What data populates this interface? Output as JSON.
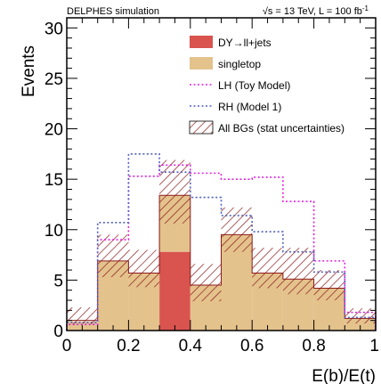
{
  "chart_data": {
    "type": "bar",
    "top_left_label": "DELPHES simulation",
    "top_right_label": "√s = 13 TeV, L = 100 fb",
    "top_right_sup": "-1",
    "xlabel": "E(b)/E(t)",
    "ylabel": "Events",
    "xlim": [
      0,
      1
    ],
    "ylim": [
      0,
      31
    ],
    "xticks": [
      0,
      0.2,
      0.4,
      0.6,
      0.8,
      1
    ],
    "xtick_labels": [
      "0",
      "0.2",
      "0.4",
      "0.6",
      "0.8",
      "1"
    ],
    "yticks": [
      0,
      5,
      10,
      15,
      20,
      25,
      30
    ],
    "ytick_labels": [
      "0",
      "5",
      "10",
      "15",
      "20",
      "25",
      "30"
    ],
    "bin_edges": [
      0,
      0.1,
      0.2,
      0.3,
      0.4,
      0.5,
      0.6,
      0.7,
      0.8,
      0.9,
      1.0
    ],
    "series": [
      {
        "name": "DY→ll+jets",
        "kind": "stacked",
        "color": "#d9534f",
        "values": [
          0,
          0,
          0,
          7.8,
          0,
          0,
          0,
          0,
          0,
          0
        ]
      },
      {
        "name": "singletop",
        "kind": "stacked",
        "color": "#e4c28c",
        "values": [
          0.9,
          6.9,
          5.7,
          5.6,
          4.5,
          9.5,
          5.7,
          5.1,
          4.2,
          1.2
        ]
      },
      {
        "name": "LH (Toy Model)",
        "kind": "step",
        "color": "#e020e0",
        "values": [
          0.6,
          9.0,
          15.3,
          16.4,
          15.6,
          15.0,
          15.2,
          12.8,
          6.9,
          1.8
        ]
      },
      {
        "name": "RH (Model 1)",
        "kind": "step",
        "color": "#5060c0",
        "values": [
          0.8,
          10.7,
          17.5,
          15.7,
          13.2,
          11.4,
          9.8,
          7.8,
          5.8,
          1.3
        ]
      },
      {
        "name": "All BGs (stat uncertainties)",
        "kind": "band",
        "color": "#8b1a1a",
        "central": [
          1.0,
          6.9,
          5.7,
          13.4,
          4.5,
          9.5,
          5.7,
          5.1,
          4.2,
          1.2
        ],
        "lower": [
          0.6,
          5.3,
          4.3,
          10.6,
          2.9,
          7.8,
          4.2,
          3.6,
          3.0,
          0.7
        ],
        "upper": [
          2.3,
          9.5,
          8.0,
          16.9,
          6.6,
          12.2,
          8.2,
          8.2,
          6.0,
          2.2
        ]
      }
    ],
    "legend_position": "top-right",
    "grid": false
  }
}
